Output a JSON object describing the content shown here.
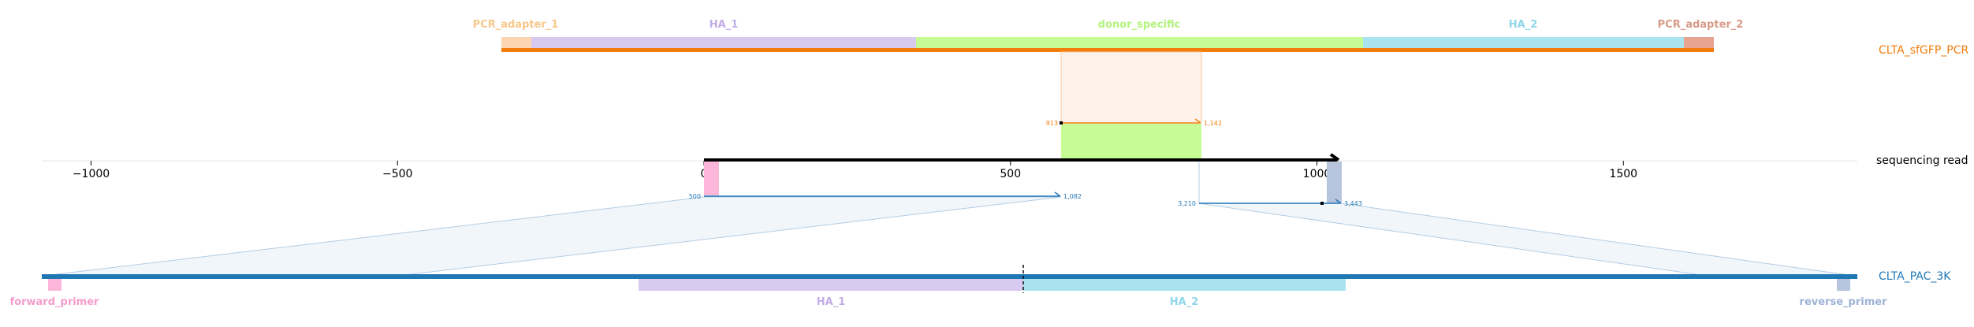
{
  "colors": {
    "pcr_adapter": "#fcd6b0",
    "pcr_adapter_2": "#e8a491",
    "ha1": "#d7c9ef",
    "donor": "#c6fb95",
    "ha2": "#a9e3ef",
    "forward": "#fbb6da",
    "reverse": "#b6c4de",
    "top_line": "#f27d0c",
    "bottom_line": "#1f77b4",
    "read_line": "#000000",
    "label_pcr1": "#f8c78a",
    "label_pcr2": "#d79a87",
    "label_ha1": "#c2aee8",
    "label_donor": "#b3f47c",
    "label_ha2": "#8fd7ea",
    "label_forward": "#f59ccc",
    "label_reverse": "#9fb2d6"
  },
  "sequences": {
    "top": "CLTA_sfGFP_PCR",
    "middle": "sequencing read",
    "bottom": "CLTA_PAC_3K"
  },
  "top_features": [
    "PCR_adapter_1",
    "HA_1",
    "donor_specific",
    "HA_2",
    "PCR_adapter_2"
  ],
  "bottom_features": [
    "forward_primer",
    "HA_1",
    "HA_2",
    "reverse_primer"
  ],
  "axis": {
    "min": -1000,
    "max": 1500,
    "ticks": [
      "−1000",
      "−500",
      "0",
      "500",
      "1000",
      "1500"
    ]
  },
  "alignments": {
    "top": {
      "start": "913",
      "end": "1,142"
    },
    "bottom_left": {
      "start": "500",
      "end": "1,082"
    },
    "bottom_right": {
      "start": "3,210",
      "end": "3,443"
    }
  }
}
